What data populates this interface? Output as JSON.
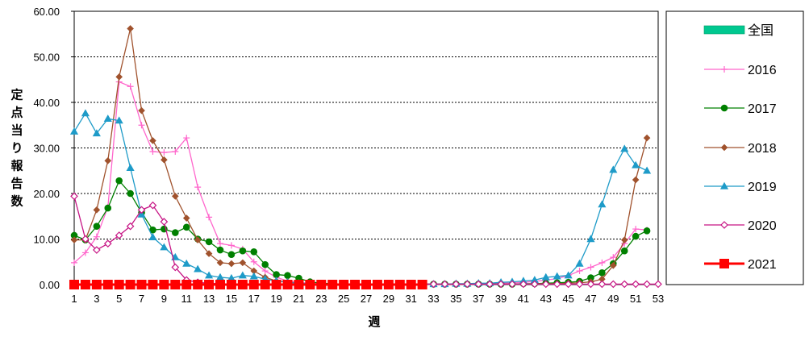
{
  "chart_data": {
    "type": "line",
    "title": "",
    "xlabel": "週",
    "ylabel": "定点当り報告数",
    "ylim": [
      0,
      60
    ],
    "xlim": [
      1,
      53
    ],
    "x_ticks": [
      1,
      3,
      5,
      7,
      9,
      11,
      13,
      15,
      17,
      19,
      21,
      23,
      25,
      27,
      29,
      31,
      33,
      35,
      37,
      39,
      41,
      43,
      45,
      47,
      49,
      51,
      53
    ],
    "y_ticks": [
      "0.00",
      "10.00",
      "20.00",
      "30.00",
      "40.00",
      "50.00",
      "60.00"
    ],
    "y_tick_values": [
      0,
      10,
      20,
      30,
      40,
      50,
      60
    ],
    "grid": "horizontal-dotted",
    "legend_position": "right",
    "legend": [
      "全国",
      "2016",
      "2017",
      "2018",
      "2019",
      "2020",
      "2021"
    ],
    "series": [
      {
        "name": "2016",
        "color": "#ff66cc",
        "marker": "plus",
        "values": [
          4.8,
          7.0,
          10.5,
          17.0,
          44.5,
          43.5,
          35.0,
          29.2,
          29.0,
          29.2,
          32.2,
          21.4,
          14.8,
          9.0,
          8.6,
          7.8,
          5.0,
          3.0,
          1.6,
          0.8,
          0.5,
          0.3,
          0.2,
          0.1,
          0.1,
          0.1,
          0.1,
          0.1,
          0.1,
          0.1,
          0.1,
          0.1,
          0.1,
          0.1,
          0.1,
          0.1,
          0.1,
          0.2,
          0.3,
          0.4,
          0.5,
          0.7,
          1.0,
          1.3,
          2.0,
          3.0,
          3.8,
          4.8,
          6.0,
          9.0,
          12.2,
          12.0
        ]
      },
      {
        "name": "2017",
        "color": "#008000",
        "marker": "circle",
        "values": [
          10.8,
          9.8,
          12.8,
          16.8,
          22.8,
          20.0,
          15.8,
          12.0,
          12.2,
          11.4,
          12.6,
          10.0,
          9.4,
          7.6,
          6.6,
          7.4,
          7.2,
          4.4,
          2.2,
          2.0,
          1.4,
          0.6,
          0.3,
          0.2,
          0.1,
          0.1,
          0.1,
          0.1,
          0.1,
          0.1,
          0.1,
          0.1,
          0.1,
          0.1,
          0.1,
          0.1,
          0.1,
          0.1,
          0.1,
          0.1,
          0.2,
          0.2,
          0.3,
          0.4,
          0.5,
          0.7,
          1.5,
          2.6,
          4.6,
          7.4,
          10.6,
          11.8
        ]
      },
      {
        "name": "2018",
        "color": "#a0522d",
        "marker": "diamond",
        "values": [
          9.8,
          9.8,
          16.4,
          27.2,
          45.6,
          56.2,
          38.2,
          31.6,
          27.4,
          19.4,
          14.6,
          9.8,
          6.8,
          4.8,
          4.6,
          4.8,
          3.0,
          1.6,
          0.8,
          0.6,
          0.3,
          0.2,
          0.1,
          0.1,
          0.1,
          0.1,
          0.1,
          0.1,
          0.1,
          0.1,
          0.1,
          0.1,
          0.1,
          0.1,
          0.1,
          0.1,
          0.1,
          0.1,
          0.1,
          0.1,
          0.1,
          0.2,
          0.2,
          0.2,
          0.3,
          0.4,
          0.6,
          1.2,
          4.2,
          9.8,
          23.0,
          32.2
        ]
      },
      {
        "name": "2019",
        "color": "#1e9bc8",
        "marker": "triangle",
        "values": [
          33.6,
          37.6,
          33.2,
          36.4,
          36.0,
          25.6,
          15.4,
          10.4,
          8.2,
          6.0,
          4.6,
          3.4,
          2.0,
          1.6,
          1.4,
          2.0,
          1.8,
          1.2,
          0.8,
          0.5,
          0.3,
          0.2,
          0.1,
          0.1,
          0.1,
          0.1,
          0.1,
          0.1,
          0.1,
          0.1,
          0.1,
          0.1,
          0.1,
          0.1,
          0.2,
          0.2,
          0.3,
          0.3,
          0.5,
          0.6,
          0.8,
          1.0,
          1.6,
          1.8,
          2.0,
          4.6,
          10.0,
          17.6,
          25.2,
          29.8,
          26.2,
          25.0
        ]
      },
      {
        "name": "2020",
        "color": "#c71585",
        "marker": "diamond-open",
        "values": [
          19.4,
          10.0,
          7.6,
          9.0,
          10.8,
          12.8,
          16.4,
          17.4,
          13.8,
          3.8,
          1.0,
          0.5,
          0.3,
          0.2,
          0.1,
          0.1,
          0.1,
          0.1,
          0.1,
          0.1,
          0.1,
          0.1,
          0.1,
          0.1,
          0.1,
          0.1,
          0.1,
          0.1,
          0.1,
          0.1,
          0.1,
          0.1,
          0.1,
          0.1,
          0.1,
          0.1,
          0.1,
          0.1,
          0.1,
          0.1,
          0.1,
          0.1,
          0.1,
          0.1,
          0.1,
          0.1,
          0.1,
          0.1,
          0.1,
          0.1,
          0.1,
          0.1,
          0.1
        ]
      },
      {
        "name": "2021",
        "color": "#ff0000",
        "marker": "square",
        "values": [
          0.0,
          0.0,
          0.0,
          0.0,
          0.0,
          0.0,
          0.0,
          0.0,
          0.0,
          0.0,
          0.0,
          0.0,
          0.0,
          0.0,
          0.0,
          0.0,
          0.0,
          0.0,
          0.0,
          0.0,
          0.0,
          0.0,
          0.0,
          0.0,
          0.0,
          0.0,
          0.0,
          0.0,
          0.0,
          0.0,
          0.0,
          0.0
        ]
      }
    ]
  },
  "legend_colors": {
    "全国": "#00c890",
    "2016": "#ff66cc",
    "2017": "#008000",
    "2018": "#a0522d",
    "2019": "#1e9bc8",
    "2020": "#c71585",
    "2021": "#ff0000"
  }
}
